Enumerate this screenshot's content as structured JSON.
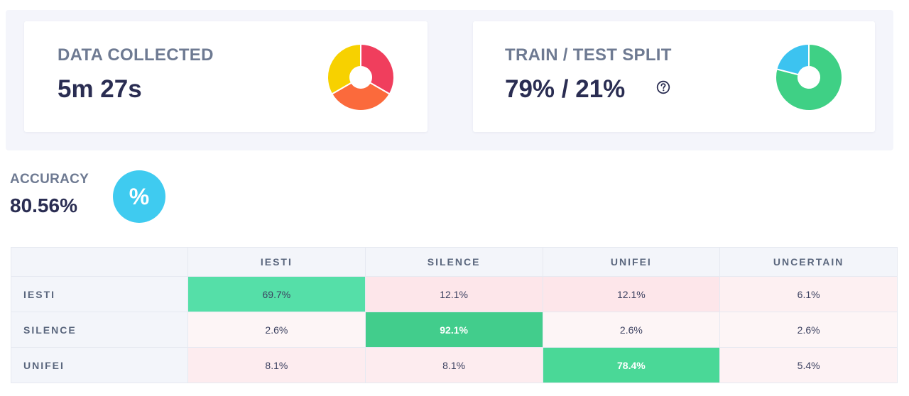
{
  "colors": {
    "donut1": [
      "#f03e5d",
      "#fb6a3c",
      "#f7d100"
    ],
    "donut2": [
      "#3fd085",
      "#3cc3f0"
    ],
    "accuracy_badge": "#3fcbf0",
    "cell_high": "#55dfa8",
    "cell_mid": "#42cd8c",
    "cell_low_pink": "#fde6ea",
    "cell_light_pink": "#fdf2f4"
  },
  "data_collected": {
    "label": "DATA COLLECTED",
    "value": "5m 27s",
    "icon": "donut-chart-icon"
  },
  "train_test_split": {
    "label": "TRAIN / TEST SPLIT",
    "value": "79% / 21%",
    "help_icon": "question-circle-icon",
    "train_fraction": 0.79,
    "test_fraction": 0.21
  },
  "accuracy": {
    "label": "ACCURACY",
    "value": "80.56%",
    "badge_text": "%"
  },
  "confusion_matrix": {
    "columns": [
      "",
      "IESTI",
      "SILENCE",
      "UNIFEI",
      "UNCERTAIN"
    ],
    "rows": [
      {
        "label": "IESTI",
        "cells": [
          "69.7%",
          "12.1%",
          "12.1%",
          "6.1%"
        ]
      },
      {
        "label": "SILENCE",
        "cells": [
          "2.6%",
          "92.1%",
          "2.6%",
          "2.6%"
        ]
      },
      {
        "label": "UNIFEI",
        "cells": [
          "8.1%",
          "8.1%",
          "78.4%",
          "5.4%"
        ]
      }
    ]
  }
}
